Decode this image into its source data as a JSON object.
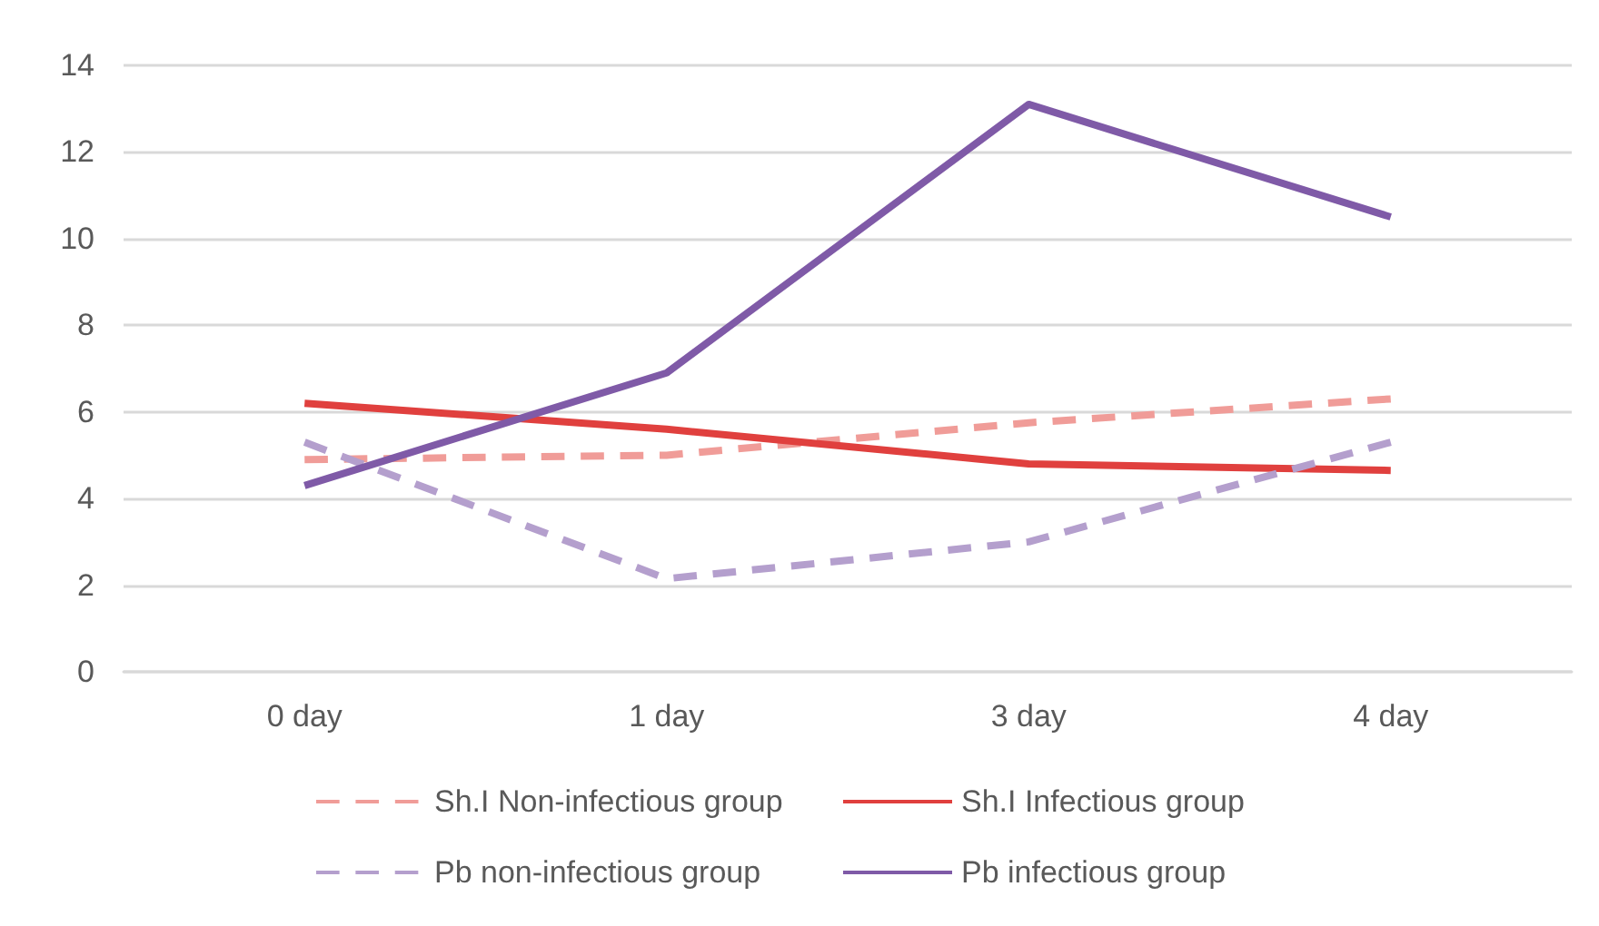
{
  "chart_data": {
    "type": "line",
    "categories": [
      "0 day",
      "1 day",
      "3 day",
      "4 day"
    ],
    "series": [
      {
        "name": "Sh.I Non-infectious group",
        "color": "#f09c98",
        "line_style": "dashed",
        "values": [
          4.9,
          5.0,
          5.75,
          6.3
        ]
      },
      {
        "name": "Sh.I Infectious group",
        "color": "#e0403e",
        "line_style": "solid",
        "values": [
          6.2,
          5.6,
          4.8,
          4.65
        ]
      },
      {
        "name": "Pb non-infectious group",
        "color": "#b49fcd",
        "line_style": "dashed",
        "values": [
          5.3,
          2.15,
          3.0,
          5.3
        ]
      },
      {
        "name": "Pb infectious group",
        "color": "#7f5aa7",
        "line_style": "solid",
        "values": [
          4.3,
          6.9,
          13.1,
          10.5
        ]
      }
    ],
    "ylim": [
      0,
      14
    ],
    "yticks": [
      0,
      2,
      4,
      6,
      8,
      10,
      12,
      14
    ],
    "grid": "y",
    "legend": "bottom"
  }
}
